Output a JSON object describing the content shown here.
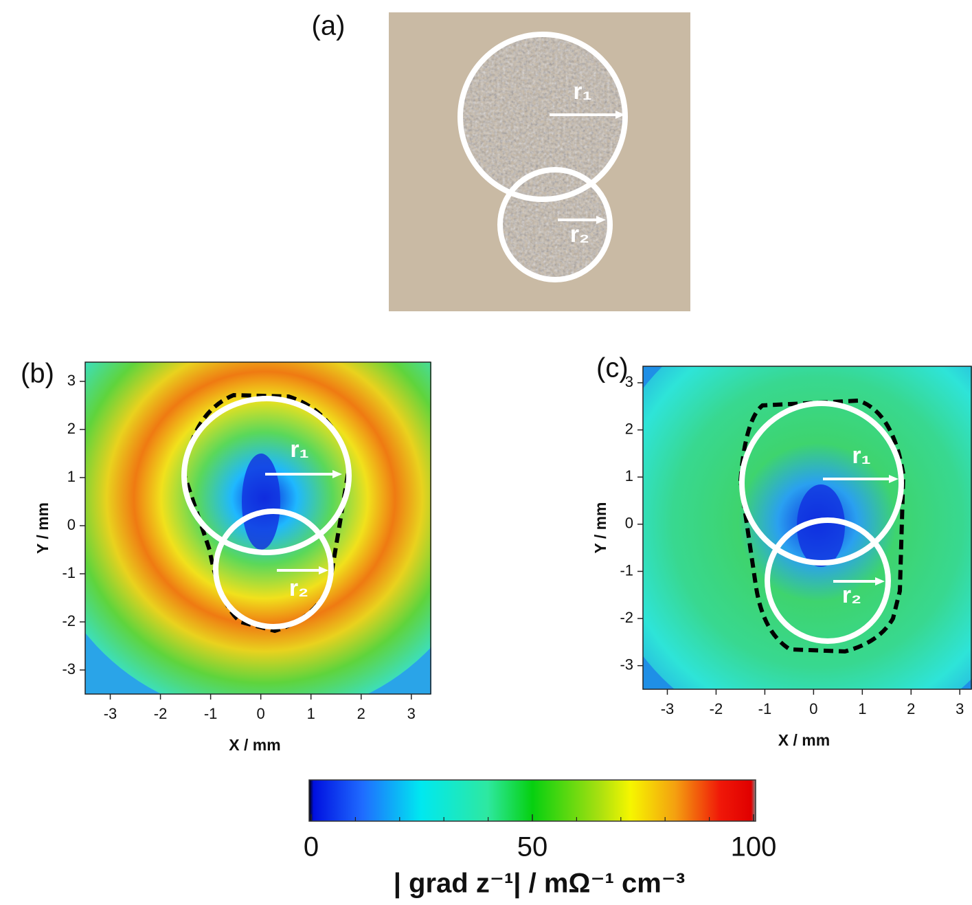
{
  "panel_a": {
    "label": "(a)",
    "r1": "r₁",
    "r2": "r₂"
  },
  "chart_data": [
    {
      "type": "contour",
      "panel_label": "(b)",
      "x_label": "X / mm",
      "y_label": "Y / mm",
      "xlim": [
        -3.5,
        3.4
      ],
      "ylim": [
        -3.5,
        3.4
      ],
      "xticks": [
        -3,
        -2,
        -1,
        0,
        1,
        2,
        3
      ],
      "yticks": [
        -3,
        -2,
        -1,
        0,
        1,
        2,
        3
      ],
      "r1": "r₁",
      "r2": "r₂"
    },
    {
      "type": "contour",
      "panel_label": "(c)",
      "x_label": "X / mm",
      "y_label": "Y / mm",
      "xlim": [
        -3.5,
        3.25
      ],
      "ylim": [
        -3.5,
        3.35
      ],
      "xticks": [
        -3,
        -2,
        -1,
        0,
        1,
        2,
        3
      ],
      "yticks": [
        -3,
        -2,
        -1,
        0,
        1,
        2,
        3
      ],
      "r1": "r₁",
      "r2": "r₂"
    }
  ],
  "colorbar": {
    "lim": [
      0,
      100
    ],
    "ticks": [
      0,
      50,
      100
    ],
    "minor_ticks": [
      10,
      20,
      30,
      40,
      60,
      70,
      80,
      90
    ],
    "label": "| grad z⁻¹| / mΩ⁻¹ cm⁻³"
  }
}
